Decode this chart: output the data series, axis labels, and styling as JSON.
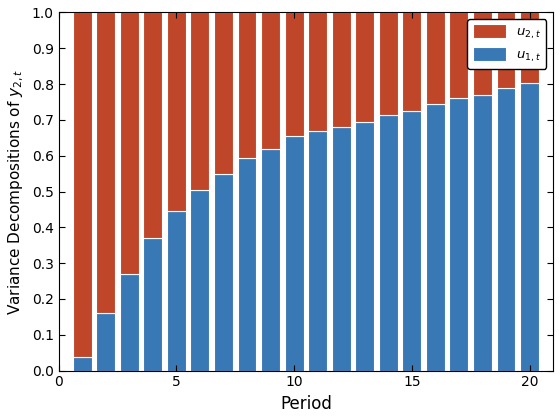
{
  "periods": [
    1,
    2,
    3,
    4,
    5,
    6,
    7,
    8,
    9,
    10,
    11,
    12,
    13,
    14,
    15,
    16,
    17,
    18,
    19,
    20
  ],
  "u1_values": [
    0.037,
    0.16,
    0.27,
    0.37,
    0.445,
    0.505,
    0.55,
    0.595,
    0.62,
    0.655,
    0.67,
    0.68,
    0.695,
    0.715,
    0.725,
    0.745,
    0.76,
    0.77,
    0.79,
    0.802
  ],
  "u2_values": [
    0.963,
    0.84,
    0.73,
    0.63,
    0.555,
    0.495,
    0.45,
    0.405,
    0.38,
    0.345,
    0.33,
    0.32,
    0.305,
    0.285,
    0.275,
    0.255,
    0.24,
    0.23,
    0.21,
    0.198
  ],
  "u1_color": "#3878b4",
  "u2_color": "#c0462a",
  "xlabel": "Period",
  "ylabel": "Variance Decompositions of $y_{2,t}$",
  "ylim": [
    0,
    1
  ],
  "xlim": [
    0,
    21
  ],
  "bar_width": 0.8,
  "legend_u2": "$u_{2,t}$",
  "legend_u1": "$u_{1,t}$",
  "yticks": [
    0,
    0.1,
    0.2,
    0.3,
    0.4,
    0.5,
    0.6,
    0.7,
    0.8,
    0.9,
    1.0
  ],
  "xticks": [
    0,
    5,
    10,
    15,
    20
  ],
  "ylabel_fontsize": 11,
  "xlabel_fontsize": 12,
  "tick_fontsize": 10
}
